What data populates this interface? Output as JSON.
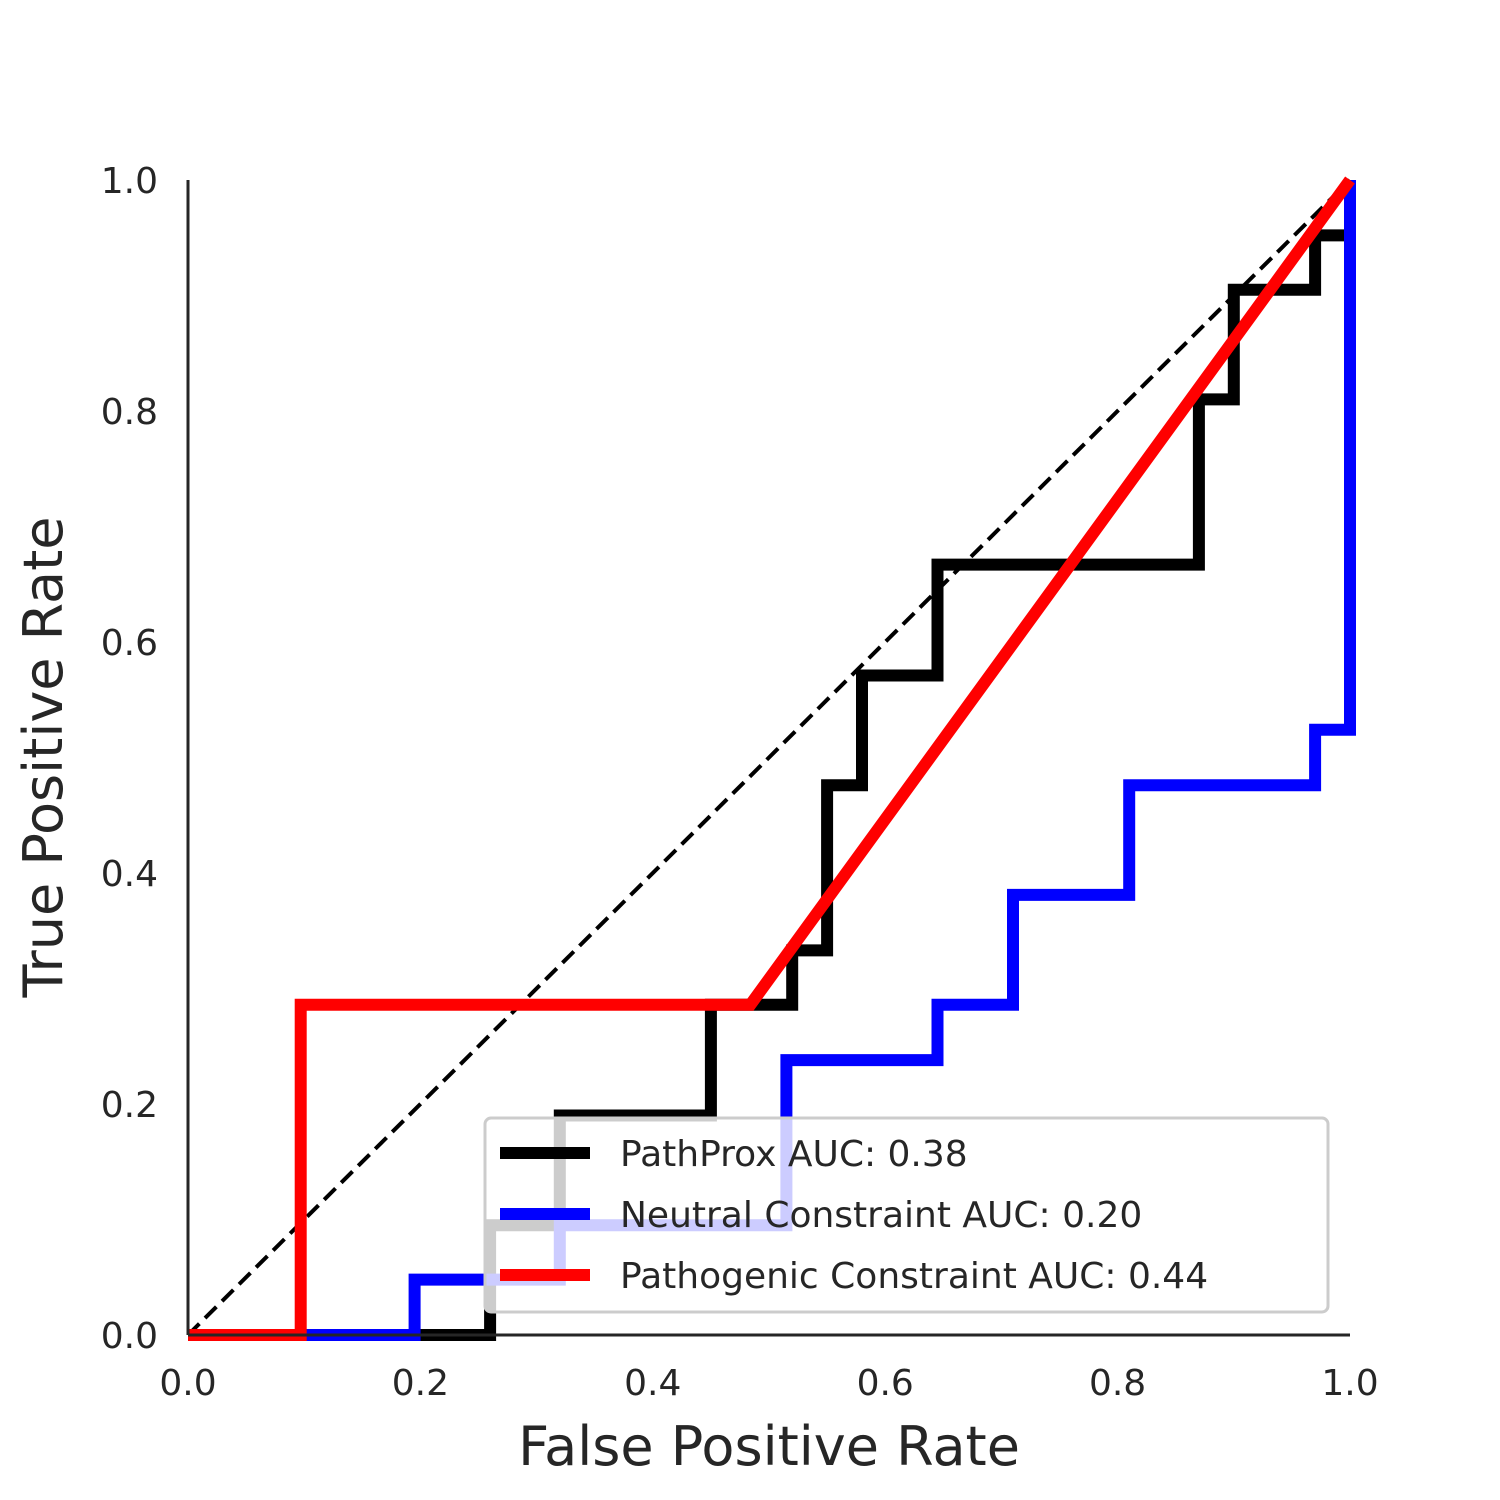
{
  "chart_data": {
    "type": "line",
    "title": "",
    "xlabel": "False Positive Rate",
    "ylabel": "True Positive Rate",
    "xlim": [
      0,
      1
    ],
    "ylim": [
      0,
      1
    ],
    "x_ticks": [
      "0.0",
      "0.2",
      "0.4",
      "0.6",
      "0.8",
      "1.0"
    ],
    "y_ticks": [
      "0.0",
      "0.2",
      "0.4",
      "0.6",
      "0.8",
      "1.0"
    ],
    "grid": false,
    "legend_position": "lower-right",
    "series": [
      {
        "name": "PathProx AUC:  0.38",
        "color": "#000000",
        "x": [
          0.0,
          0.26,
          0.26,
          0.32,
          0.32,
          0.45,
          0.45,
          0.52,
          0.52,
          0.55,
          0.55,
          0.58,
          0.58,
          0.645,
          0.645,
          0.87,
          0.87,
          0.9,
          0.9,
          0.97,
          0.97,
          1.0
        ],
        "y": [
          0.0,
          0.0,
          0.095,
          0.095,
          0.19,
          0.19,
          0.286,
          0.286,
          0.333,
          0.333,
          0.476,
          0.476,
          0.571,
          0.571,
          0.667,
          0.667,
          0.81,
          0.81,
          0.905,
          0.905,
          0.952,
          0.952
        ]
      },
      {
        "name": "Neutral Constraint AUC:  0.20",
        "color": "#0000ff",
        "x": [
          0.0,
          0.195,
          0.195,
          0.32,
          0.32,
          0.515,
          0.515,
          0.645,
          0.645,
          0.71,
          0.71,
          0.81,
          0.81,
          0.97,
          0.97,
          1.0,
          1.0
        ],
        "y": [
          0.0,
          0.0,
          0.048,
          0.048,
          0.095,
          0.095,
          0.238,
          0.238,
          0.286,
          0.286,
          0.381,
          0.381,
          0.476,
          0.476,
          0.524,
          0.524,
          1.0
        ]
      },
      {
        "name": "Pathogenic Constraint AUC:  0.44",
        "color": "#ff0000",
        "x": [
          0.0,
          0.097,
          0.097,
          0.484,
          1.0
        ],
        "y": [
          0.0,
          0.0,
          0.286,
          0.286,
          1.0
        ]
      },
      {
        "color": "#000000",
        "dashed": true,
        "x": [
          0.0,
          1.0
        ],
        "y": [
          0.0,
          1.0
        ]
      }
    ]
  }
}
